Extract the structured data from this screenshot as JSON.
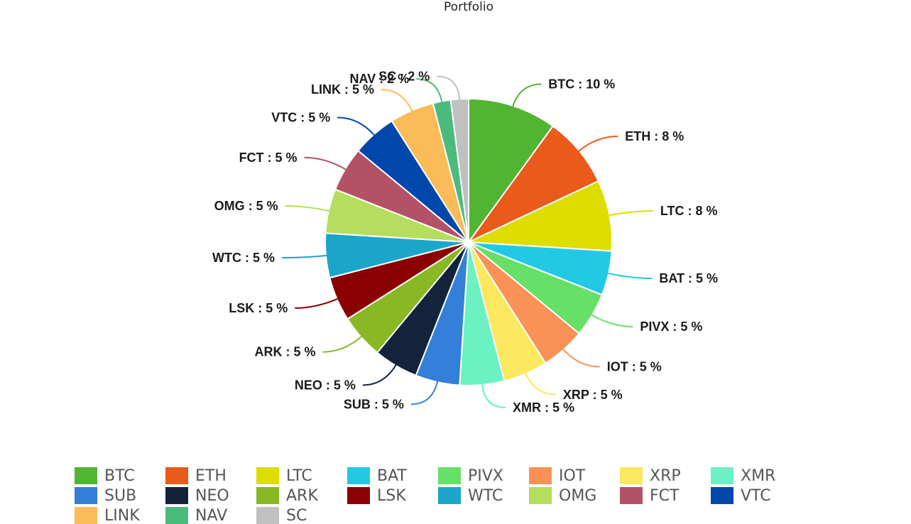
{
  "chart_data": {
    "type": "pie",
    "title": "Portfolio",
    "slices": [
      {
        "name": "BTC",
        "value": 10,
        "label": "BTC : 10 %",
        "color": "#52b433"
      },
      {
        "name": "ETH",
        "value": 8,
        "label": "ETH : 8 %",
        "color": "#ea5a1a"
      },
      {
        "name": "LTC",
        "value": 8,
        "label": "LTC : 8 %",
        "color": "#dddd00"
      },
      {
        "name": "BAT",
        "value": 5,
        "label": "BAT : 5 %",
        "color": "#22c9e5"
      },
      {
        "name": "PIVX",
        "value": 5,
        "label": "PIVX : 5 %",
        "color": "#66e066"
      },
      {
        "name": "IOT",
        "value": 5,
        "label": "IOT : 5 %",
        "color": "#fa9156"
      },
      {
        "name": "XRP",
        "value": 5,
        "label": "XRP : 5 %",
        "color": "#fbe85e"
      },
      {
        "name": "XMR",
        "value": 5,
        "label": "XMR : 5 %",
        "color": "#6cf1c3"
      },
      {
        "name": "SUB",
        "value": 5,
        "label": "SUB : 5 %",
        "color": "#337fd9"
      },
      {
        "name": "NEO",
        "value": 5,
        "label": "NEO : 5 %",
        "color": "#12233b"
      },
      {
        "name": "ARK",
        "value": 5,
        "label": "ARK : 5 %",
        "color": "#88b823"
      },
      {
        "name": "LSK",
        "value": 5,
        "label": "LSK : 5 %",
        "color": "#8b0000"
      },
      {
        "name": "WTC",
        "value": 5,
        "label": "WTC : 5 %",
        "color": "#1ba6c9"
      },
      {
        "name": "OMG",
        "value": 5,
        "label": "OMG : 5 %",
        "color": "#b5dd5e"
      },
      {
        "name": "FCT",
        "value": 5,
        "label": "FCT  : 5 %",
        "color": "#b35167"
      },
      {
        "name": "VTC",
        "value": 5,
        "label": "VTC : 5 %",
        "color": "#0047ab"
      },
      {
        "name": "LINK",
        "value": 5,
        "label": "LINK : 5 %",
        "color": "#fbbb58"
      },
      {
        "name": "NAV",
        "value": 2,
        "label": "NAV : 2 %",
        "color": "#4bbb7d"
      },
      {
        "name": "SC",
        "value": 2,
        "label": "SC : 2 %",
        "color": "#c0c0c0"
      }
    ],
    "legend_position": "bottom"
  }
}
